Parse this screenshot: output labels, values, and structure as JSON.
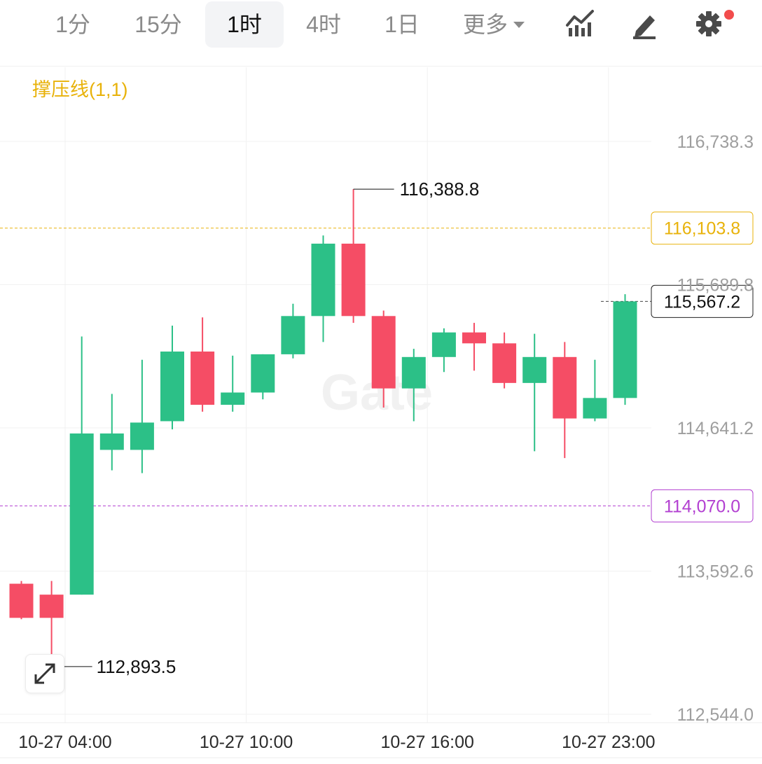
{
  "toolbar": {
    "timeframes": [
      "1分",
      "15分",
      "1时",
      "4时",
      "1日"
    ],
    "active": "1时",
    "more_label": "更多",
    "icons": [
      "indicator-icon",
      "draw-pen-icon",
      "gear-icon"
    ]
  },
  "indicator_label": "撑压线(1,1)",
  "watermark": "Gate",
  "colors": {
    "up": "#2cc087",
    "down": "#f54d65",
    "resistance": "#e8b20a",
    "support": "#b23fd1"
  },
  "chart_data": {
    "type": "candlestick",
    "y_ticks": [
      116738.3,
      115689.8,
      114641.2,
      113592.6,
      112544.0
    ],
    "y_tick_labels": [
      "116,738.3",
      "115,689.8",
      "114,641.2",
      "113,592.6",
      "112,544.0"
    ],
    "x_tick_labels": [
      "10-27 04:00",
      "10-27 10:00",
      "10-27 16:00",
      "10-27 23:00"
    ],
    "x_tick_index": [
      1.45,
      7.45,
      13.45,
      19.45
    ],
    "candles": [
      {
        "o": 113500,
        "h": 113520,
        "l": 113240,
        "c": 113250
      },
      {
        "o": 113420,
        "h": 113520,
        "l": 112893.5,
        "c": 113250
      },
      {
        "o": 113420,
        "h": 115310,
        "l": 113420,
        "c": 114600
      },
      {
        "o": 114480,
        "h": 114890,
        "l": 114330,
        "c": 114600
      },
      {
        "o": 114480,
        "h": 115140,
        "l": 114310,
        "c": 114680
      },
      {
        "o": 114690,
        "h": 115390,
        "l": 114630,
        "c": 115200
      },
      {
        "o": 115200,
        "h": 115450,
        "l": 114760,
        "c": 114810
      },
      {
        "o": 114810,
        "h": 115170,
        "l": 114760,
        "c": 114900
      },
      {
        "o": 114900,
        "h": 115180,
        "l": 114850,
        "c": 115180
      },
      {
        "o": 115180,
        "h": 115550,
        "l": 115150,
        "c": 115460
      },
      {
        "o": 115460,
        "h": 116050,
        "l": 115270,
        "c": 115990
      },
      {
        "o": 115990,
        "h": 116388.8,
        "l": 115410,
        "c": 115460
      },
      {
        "o": 115460,
        "h": 115500,
        "l": 114790,
        "c": 114930
      },
      {
        "o": 114930,
        "h": 115220,
        "l": 114690,
        "c": 115160
      },
      {
        "o": 115160,
        "h": 115370,
        "l": 115050,
        "c": 115340
      },
      {
        "o": 115340,
        "h": 115410,
        "l": 115060,
        "c": 115260
      },
      {
        "o": 115260,
        "h": 115340,
        "l": 114930,
        "c": 114970
      },
      {
        "o": 114970,
        "h": 115330,
        "l": 114470,
        "c": 115160
      },
      {
        "o": 115160,
        "h": 115270,
        "l": 114420,
        "c": 114710
      },
      {
        "o": 114710,
        "h": 115140,
        "l": 114690,
        "c": 114860
      },
      {
        "o": 114860,
        "h": 115620,
        "l": 114810,
        "c": 115567.2
      }
    ],
    "annotations": {
      "high": {
        "value": 116388.8,
        "index": 11,
        "label": "116,388.8"
      },
      "low": {
        "value": 112893.5,
        "index": 1,
        "label": "112,893.5"
      }
    },
    "horizontal_lines": [
      {
        "name": "resistance",
        "value": 116103.8,
        "label": "116,103.8",
        "style": "dashed"
      },
      {
        "name": "support",
        "value": 114070.0,
        "label": "114,070.0",
        "style": "dashed"
      },
      {
        "name": "last-price",
        "value": 115567.2,
        "label": "115,567.2",
        "style": "dashed"
      }
    ],
    "grid": true
  }
}
